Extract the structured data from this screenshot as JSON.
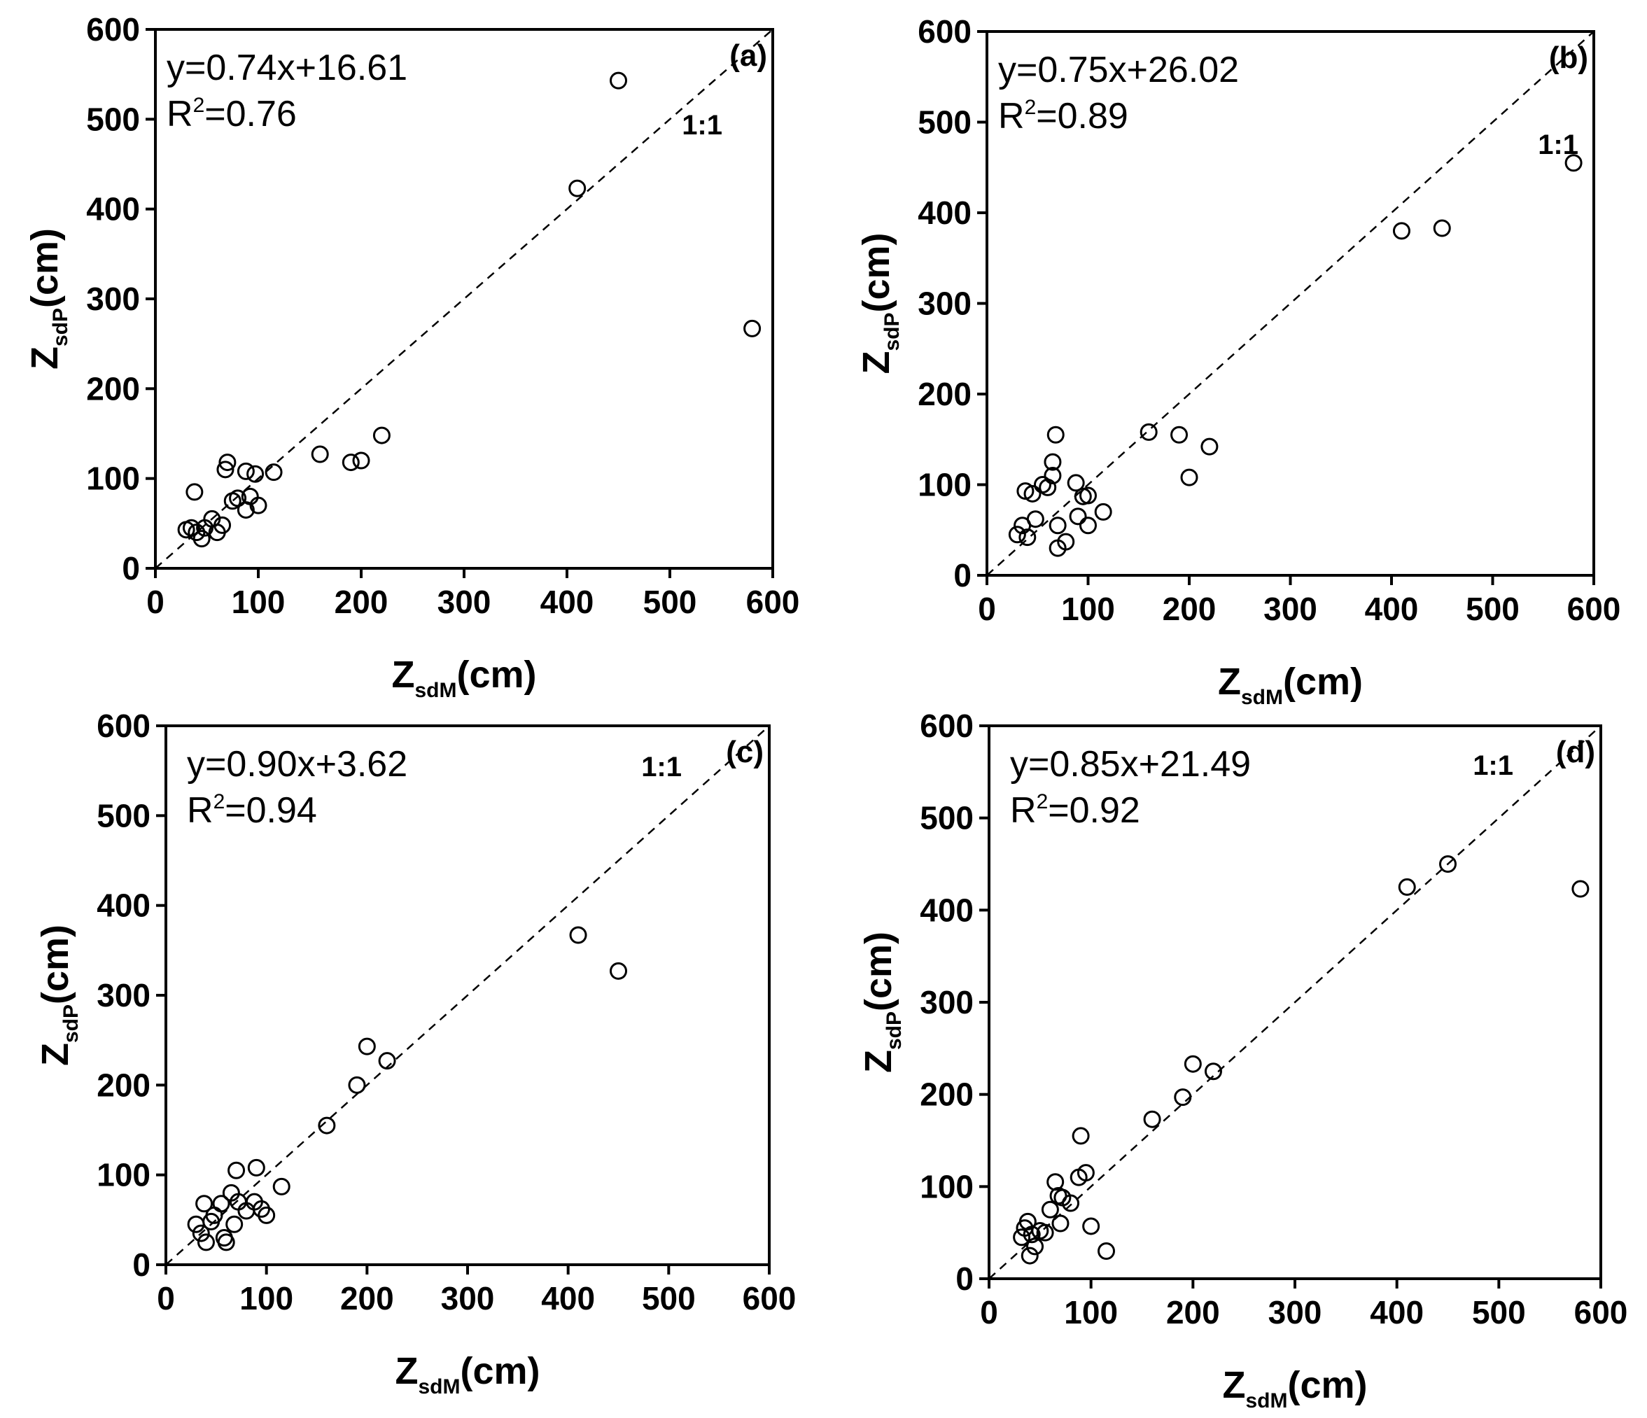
{
  "chart_data": [
    {
      "type": "scatter",
      "panel": "(a)",
      "equation": "y=0.74x+16.61",
      "r2_prefix": "R",
      "r2_sup": "2",
      "r2_value": "=0.76",
      "ref_line_label": "1:1",
      "xlabel_main": "Z",
      "xlabel_sub": "sdM",
      "xlabel_unit": "(cm)",
      "ylabel_main": "Z",
      "ylabel_sub": "sdP",
      "ylabel_unit": "(cm)",
      "xlim": [
        0,
        600
      ],
      "ylim": [
        0,
        600
      ],
      "ticks": [
        0,
        100,
        200,
        300,
        400,
        500,
        600
      ],
      "points": [
        [
          30,
          43
        ],
        [
          35,
          45
        ],
        [
          38,
          85
        ],
        [
          40,
          40
        ],
        [
          45,
          33
        ],
        [
          48,
          45
        ],
        [
          55,
          55
        ],
        [
          60,
          40
        ],
        [
          65,
          48
        ],
        [
          68,
          110
        ],
        [
          70,
          118
        ],
        [
          75,
          75
        ],
        [
          80,
          78
        ],
        [
          88,
          108
        ],
        [
          88,
          65
        ],
        [
          92,
          80
        ],
        [
          97,
          105
        ],
        [
          100,
          70
        ],
        [
          115,
          107
        ],
        [
          160,
          127
        ],
        [
          190,
          118
        ],
        [
          200,
          120
        ],
        [
          220,
          148
        ],
        [
          410,
          423
        ],
        [
          450,
          543
        ],
        [
          580,
          267
        ]
      ]
    },
    {
      "type": "scatter",
      "panel": "(b)",
      "equation": "y=0.75x+26.02",
      "r2_prefix": "R",
      "r2_sup": "2",
      "r2_value": "=0.89",
      "ref_line_label": "1:1",
      "xlabel_main": "Z",
      "xlabel_sub": "sdM",
      "xlabel_unit": "(cm)",
      "ylabel_main": "Z",
      "ylabel_sub": "sdP",
      "ylabel_unit": "(cm)",
      "xlim": [
        0,
        600
      ],
      "ylim": [
        0,
        600
      ],
      "ticks": [
        0,
        100,
        200,
        300,
        400,
        500,
        600
      ],
      "points": [
        [
          30,
          45
        ],
        [
          35,
          55
        ],
        [
          38,
          93
        ],
        [
          40,
          42
        ],
        [
          45,
          90
        ],
        [
          48,
          62
        ],
        [
          55,
          100
        ],
        [
          60,
          97
        ],
        [
          65,
          125
        ],
        [
          65,
          110
        ],
        [
          68,
          155
        ],
        [
          70,
          55
        ],
        [
          70,
          30
        ],
        [
          78,
          37
        ],
        [
          88,
          102
        ],
        [
          90,
          65
        ],
        [
          95,
          87
        ],
        [
          100,
          55
        ],
        [
          100,
          88
        ],
        [
          115,
          70
        ],
        [
          160,
          158
        ],
        [
          190,
          155
        ],
        [
          200,
          108
        ],
        [
          220,
          142
        ],
        [
          410,
          380
        ],
        [
          450,
          383
        ],
        [
          580,
          455
        ]
      ]
    },
    {
      "type": "scatter",
      "panel": "(c)",
      "equation": "y=0.90x+3.62",
      "r2_prefix": "R",
      "r2_sup": "2",
      "r2_value": "=0.94",
      "ref_line_label": "1:1",
      "xlabel_main": "Z",
      "xlabel_sub": "sdM",
      "xlabel_unit": "(cm)",
      "ylabel_main": "Z",
      "ylabel_sub": "sdP",
      "ylabel_unit": "(cm)",
      "xlim": [
        0,
        600
      ],
      "ylim": [
        0,
        600
      ],
      "ticks": [
        0,
        100,
        200,
        300,
        400,
        500,
        600
      ],
      "points": [
        [
          30,
          45
        ],
        [
          35,
          35
        ],
        [
          38,
          68
        ],
        [
          40,
          25
        ],
        [
          45,
          48
        ],
        [
          48,
          55
        ],
        [
          55,
          68
        ],
        [
          58,
          30
        ],
        [
          60,
          25
        ],
        [
          65,
          80
        ],
        [
          68,
          45
        ],
        [
          70,
          105
        ],
        [
          72,
          70
        ],
        [
          80,
          60
        ],
        [
          88,
          70
        ],
        [
          90,
          108
        ],
        [
          95,
          62
        ],
        [
          100,
          55
        ],
        [
          115,
          87
        ],
        [
          160,
          155
        ],
        [
          190,
          200
        ],
        [
          200,
          243
        ],
        [
          220,
          227
        ],
        [
          410,
          367
        ],
        [
          450,
          327
        ]
      ]
    },
    {
      "type": "scatter",
      "panel": "(d)",
      "equation": "y=0.85x+21.49",
      "r2_prefix": "R",
      "r2_sup": "2",
      "r2_value": "=0.92",
      "ref_line_label": "1:1",
      "xlabel_main": "Z",
      "xlabel_sub": "sdM",
      "xlabel_unit": "(cm)",
      "ylabel_main": "Z",
      "ylabel_sub": "sdP",
      "ylabel_unit": "(cm)",
      "xlim": [
        0,
        600
      ],
      "ylim": [
        0,
        600
      ],
      "ticks": [
        0,
        100,
        200,
        300,
        400,
        500,
        600
      ],
      "points": [
        [
          32,
          45
        ],
        [
          35,
          55
        ],
        [
          38,
          62
        ],
        [
          40,
          25
        ],
        [
          42,
          48
        ],
        [
          45,
          35
        ],
        [
          50,
          52
        ],
        [
          55,
          50
        ],
        [
          60,
          75
        ],
        [
          65,
          105
        ],
        [
          68,
          90
        ],
        [
          70,
          60
        ],
        [
          72,
          88
        ],
        [
          80,
          82
        ],
        [
          88,
          110
        ],
        [
          90,
          155
        ],
        [
          95,
          115
        ],
        [
          100,
          57
        ],
        [
          115,
          30
        ],
        [
          160,
          173
        ],
        [
          190,
          197
        ],
        [
          200,
          233
        ],
        [
          220,
          225
        ],
        [
          410,
          425
        ],
        [
          450,
          450
        ],
        [
          580,
          423
        ]
      ]
    }
  ]
}
